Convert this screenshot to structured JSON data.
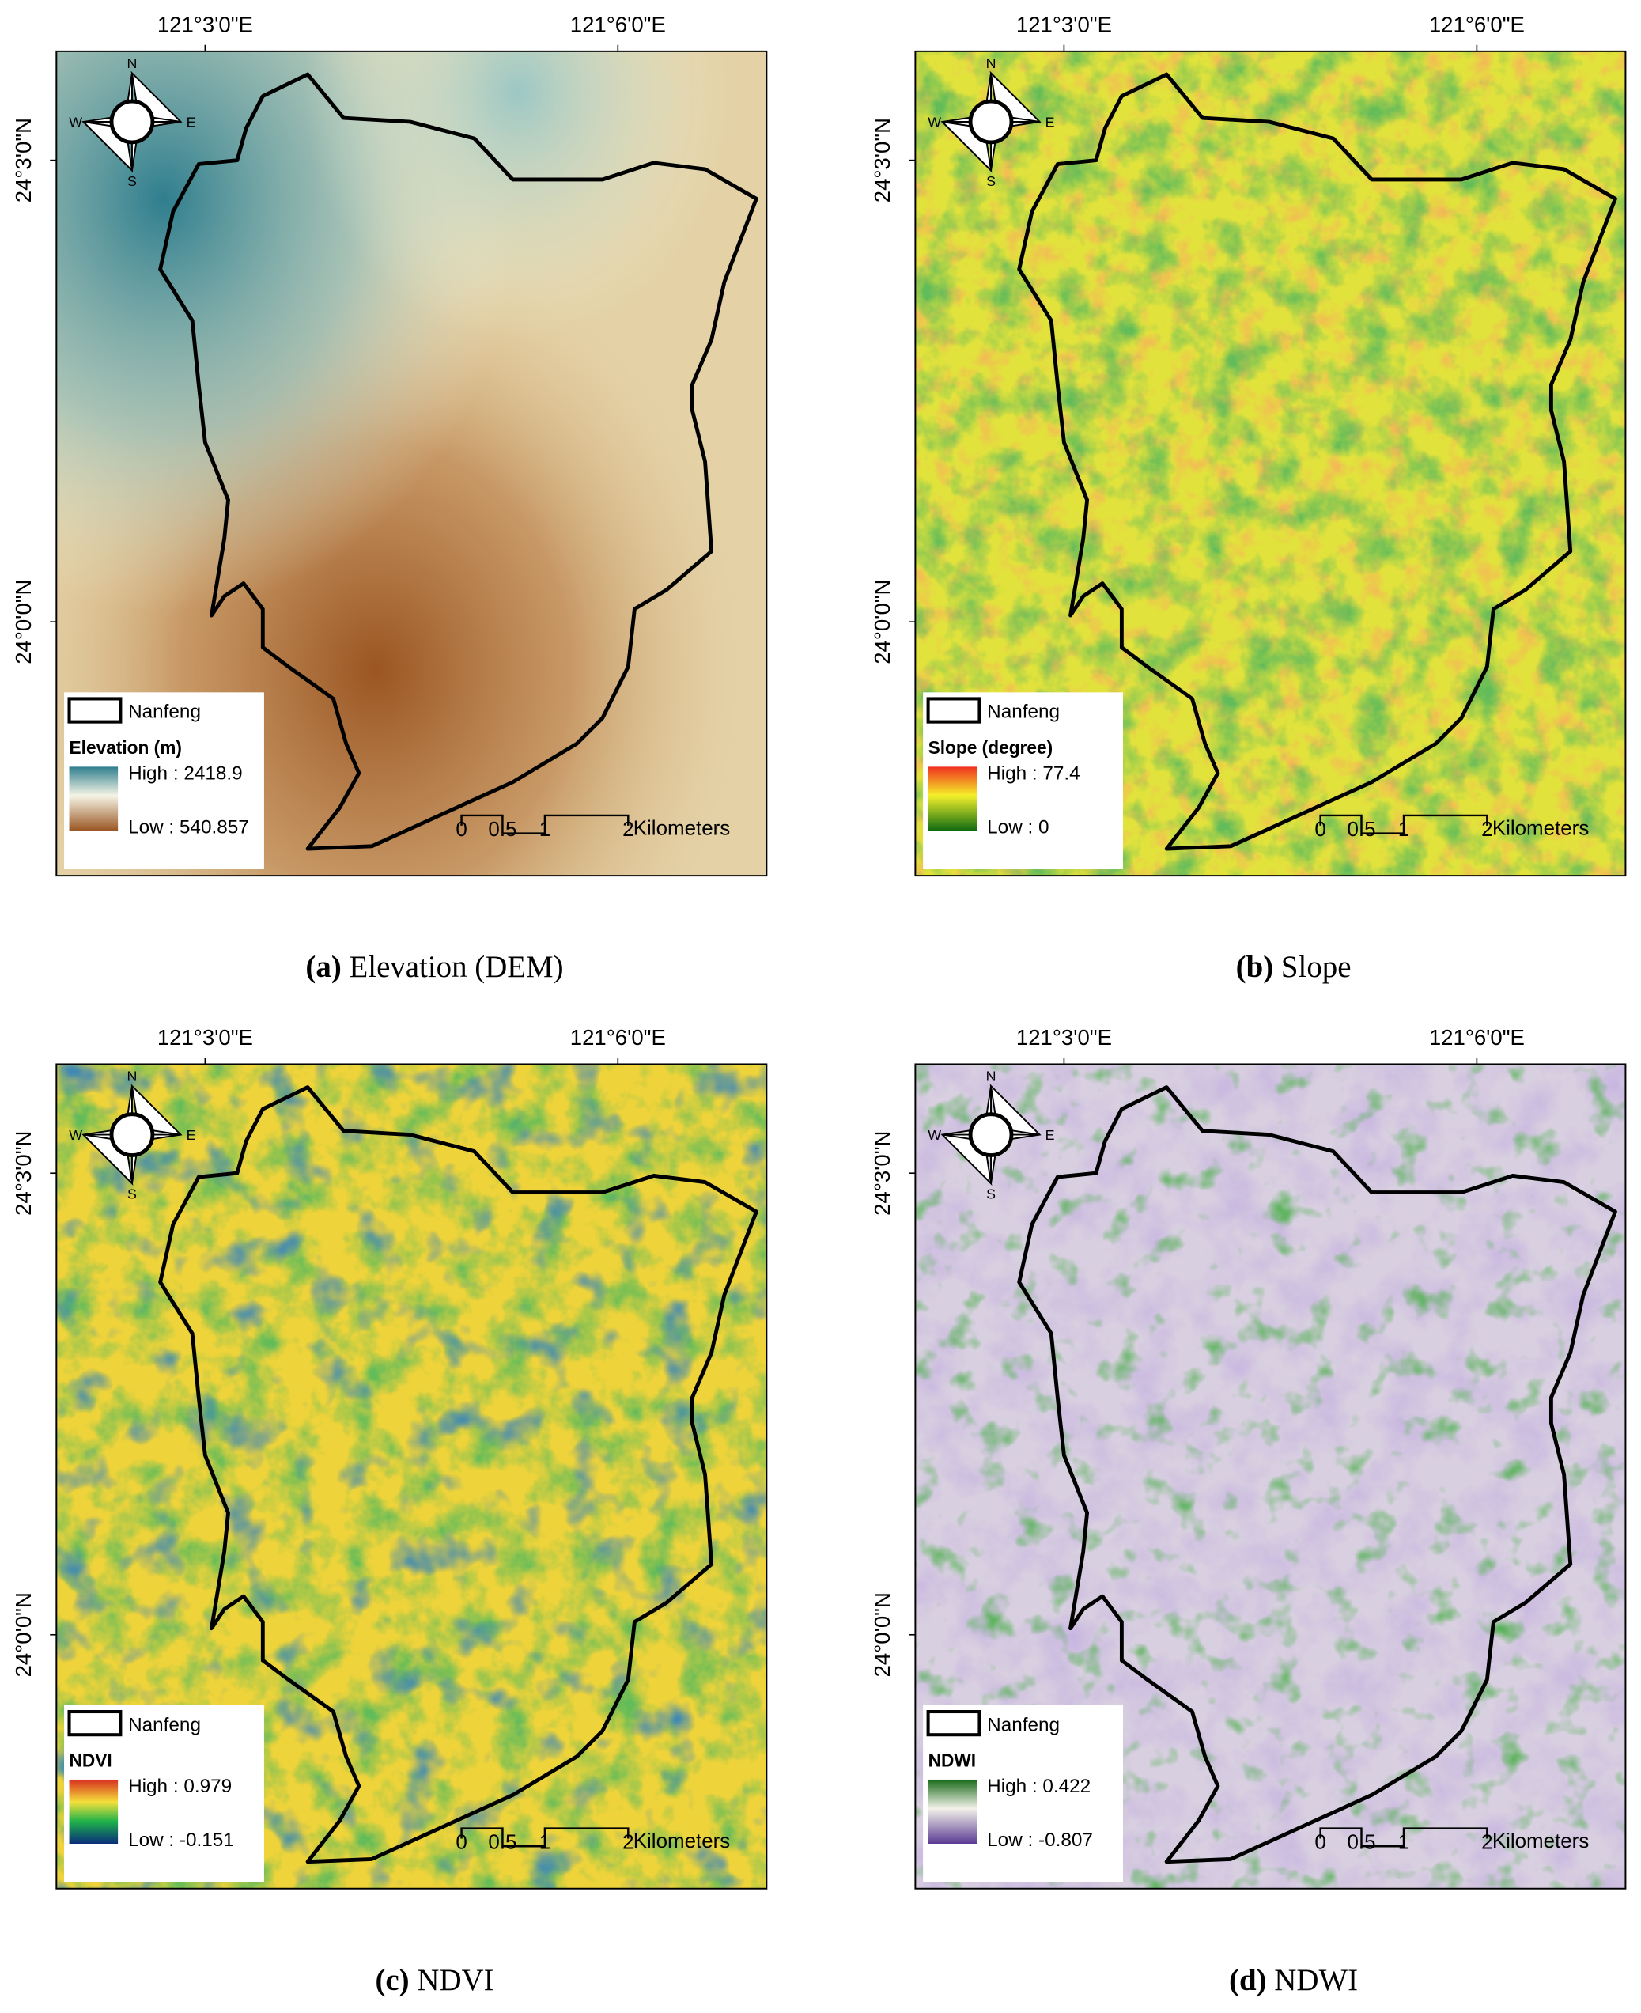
{
  "shared": {
    "lon_labels": [
      "121°3'0\"E",
      "121°6'0\"E"
    ],
    "lat_labels": [
      "24°3'0\"N",
      "24°0'0\"N"
    ],
    "compass": {
      "n": "N",
      "s": "S",
      "e": "E",
      "w": "W"
    },
    "boundary_label": "Nanfeng",
    "scale_labels": [
      "0",
      "0.5",
      "1",
      "2"
    ],
    "scale_unit": "Kilometers"
  },
  "panels": [
    {
      "label": "(a)",
      "caption": "Elevation (DEM)",
      "legend_title": "Elevation (m)",
      "high": "High : 2418.9",
      "low": "Low : 540.857"
    },
    {
      "label": "(b)",
      "caption": "Slope",
      "legend_title": "Slope (degree)",
      "high": "High : 77.4",
      "low": "Low : 0"
    },
    {
      "label": "(c)",
      "caption": "NDVI",
      "legend_title": "NDVI",
      "high": "High : 0.979",
      "low": "Low : -0.151"
    },
    {
      "label": "(d)",
      "caption": "NDWI",
      "legend_title": "NDWI",
      "high": "High : 0.422",
      "low": "Low : -0.807"
    }
  ]
}
